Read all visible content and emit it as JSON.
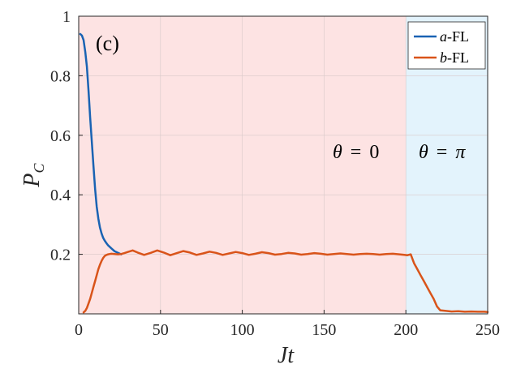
{
  "chart_data": {
    "type": "line",
    "panel_label": "(c)",
    "xlabel": "Jt",
    "ylabel_main": "P",
    "ylabel_sub": "C",
    "xlim": [
      0,
      250
    ],
    "ylim": [
      0,
      1
    ],
    "xticks": [
      0,
      50,
      100,
      150,
      200,
      250
    ],
    "yticks": [
      0.2,
      0.4,
      0.6,
      0.8,
      1
    ],
    "ytick_labels": [
      "0.2",
      "0.4",
      "0.6",
      "0.8",
      "1"
    ],
    "grid": true,
    "legend_position": "top-right",
    "regions": [
      {
        "label_left": "θ",
        "label_right": "0",
        "x_start": 0,
        "x_end": 200,
        "color": "#fde3e3"
      },
      {
        "label_left": "θ",
        "label_right": "π",
        "x_start": 200,
        "x_end": 250,
        "color": "#e3f3fc"
      }
    ],
    "series": [
      {
        "name_var": "a",
        "name_suffix": "-FL",
        "color": "#1a63b3",
        "x": [
          1,
          2,
          3,
          4,
          5,
          6,
          7,
          8,
          9,
          10,
          11,
          12,
          13,
          14,
          15,
          16,
          17,
          18,
          20,
          22,
          24,
          26
        ],
        "y": [
          0.94,
          0.935,
          0.92,
          0.88,
          0.83,
          0.75,
          0.66,
          0.58,
          0.5,
          0.42,
          0.36,
          0.32,
          0.29,
          0.27,
          0.255,
          0.245,
          0.237,
          0.23,
          0.22,
          0.21,
          0.205,
          0.2
        ]
      },
      {
        "name_var": "b",
        "name_suffix": "-FL",
        "color": "#d9541a",
        "x": [
          3,
          4,
          5,
          6,
          7,
          8,
          9,
          10,
          11,
          12,
          13,
          14,
          15,
          16,
          17,
          18,
          19,
          20,
          22,
          24,
          26,
          28,
          30,
          33,
          36,
          40,
          44,
          48,
          52,
          56,
          60,
          64,
          68,
          72,
          76,
          80,
          84,
          88,
          92,
          96,
          100,
          104,
          108,
          112,
          116,
          120,
          124,
          128,
          132,
          136,
          140,
          144,
          148,
          152,
          156,
          160,
          164,
          168,
          172,
          176,
          180,
          184,
          188,
          192,
          196,
          199,
          201,
          203,
          205,
          207,
          209,
          211,
          213,
          215,
          217,
          219,
          221,
          224,
          228,
          232,
          236,
          240,
          244,
          248,
          250
        ],
        "y": [
          0.005,
          0.01,
          0.02,
          0.035,
          0.05,
          0.07,
          0.09,
          0.11,
          0.13,
          0.15,
          0.165,
          0.178,
          0.188,
          0.195,
          0.198,
          0.2,
          0.201,
          0.202,
          0.201,
          0.2,
          0.201,
          0.204,
          0.208,
          0.213,
          0.206,
          0.198,
          0.205,
          0.213,
          0.206,
          0.197,
          0.204,
          0.211,
          0.206,
          0.198,
          0.203,
          0.209,
          0.205,
          0.198,
          0.203,
          0.208,
          0.204,
          0.198,
          0.202,
          0.207,
          0.204,
          0.199,
          0.201,
          0.205,
          0.203,
          0.199,
          0.201,
          0.204,
          0.202,
          0.199,
          0.201,
          0.203,
          0.201,
          0.199,
          0.201,
          0.202,
          0.201,
          0.199,
          0.201,
          0.202,
          0.2,
          0.198,
          0.197,
          0.2,
          0.17,
          0.15,
          0.13,
          0.11,
          0.09,
          0.07,
          0.05,
          0.025,
          0.012,
          0.01,
          0.008,
          0.009,
          0.007,
          0.008,
          0.007,
          0.007,
          0.006
        ]
      }
    ]
  }
}
